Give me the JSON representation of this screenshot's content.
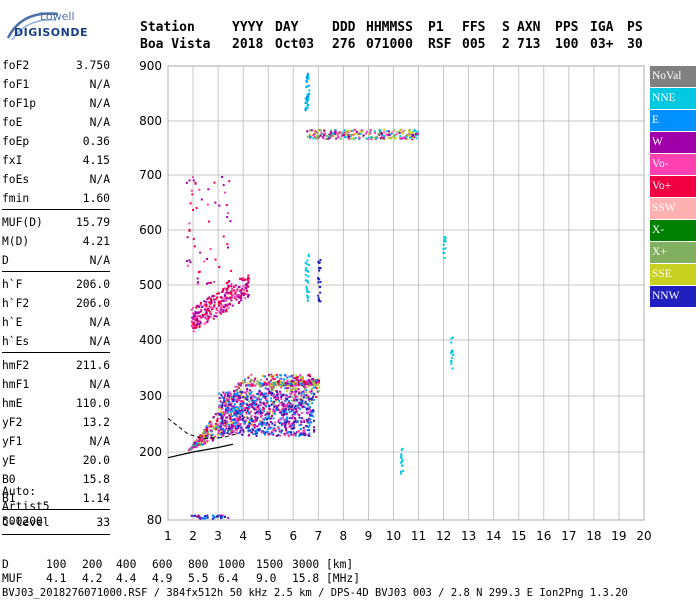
{
  "logo": {
    "line1": "Lowell",
    "line2": "DIGISONDE"
  },
  "header": {
    "labels": [
      "Station",
      "YYYY",
      "DAY",
      "DDD",
      "HHMMSS",
      "P1",
      "FFS",
      "S",
      "AXN",
      "PPS",
      "IGA",
      "PS"
    ],
    "values": [
      "Boa Vista",
      "2018",
      "Oct03",
      "276",
      "071000",
      "RSF",
      "005",
      "2",
      "713",
      "100",
      "03+",
      "30"
    ]
  },
  "params": [
    {
      "k": "foF2",
      "v": "3.750"
    },
    {
      "k": "foF1",
      "v": "N/A"
    },
    {
      "k": "foF1p",
      "v": "N/A"
    },
    {
      "k": "foE",
      "v": "N/A"
    },
    {
      "k": "foEp",
      "v": "0.36"
    },
    {
      "k": "fxI",
      "v": "4.15"
    },
    {
      "k": "foEs",
      "v": "N/A"
    },
    {
      "k": "fmin",
      "v": "1.60"
    },
    {
      "k": "MUF(D)",
      "v": "15.79"
    },
    {
      "k": "M(D)",
      "v": "4.21"
    },
    {
      "k": "D",
      "v": "N/A"
    },
    {
      "k": "h`F",
      "v": "206.0"
    },
    {
      "k": "h`F2",
      "v": "206.0"
    },
    {
      "k": "h`E",
      "v": "N/A"
    },
    {
      "k": "h`Es",
      "v": "N/A"
    },
    {
      "k": "hmF2",
      "v": "211.6"
    },
    {
      "k": "hmF1",
      "v": "N/A"
    },
    {
      "k": "hmE",
      "v": "110.0"
    },
    {
      "k": "yF2",
      "v": "13.2"
    },
    {
      "k": "yF1",
      "v": "N/A"
    },
    {
      "k": "yE",
      "v": "20.0"
    },
    {
      "k": "B0",
      "v": "15.8"
    },
    {
      "k": "B1",
      "v": "1.14"
    },
    {
      "k": "C-level",
      "v": "33"
    }
  ],
  "auto": [
    "Auto:",
    "Artist5",
    "500200"
  ],
  "legend": [
    {
      "label": "NoVal",
      "bg": "#808080",
      "fg": "#ffffff"
    },
    {
      "label": "NNE",
      "bg": "#00c8e0",
      "fg": "#ffffff"
    },
    {
      "label": "E",
      "bg": "#0090ff",
      "fg": "#ffffff"
    },
    {
      "label": "W",
      "bg": "#a000a8",
      "fg": "#ffffff"
    },
    {
      "label": "Vo-",
      "bg": "#ff40b0",
      "fg": "#ffffff"
    },
    {
      "label": "Vo+",
      "bg": "#f00040",
      "fg": "#ffffff"
    },
    {
      "label": "SSW",
      "bg": "#ffb0b0",
      "fg": "#ffffff"
    },
    {
      "label": "X-",
      "bg": "#008000",
      "fg": "#ffffff"
    },
    {
      "label": "X+",
      "bg": "#80b060",
      "fg": "#ffffff"
    },
    {
      "label": "SSE",
      "bg": "#c8d020",
      "fg": "#ffffff"
    },
    {
      "label": "NNW",
      "bg": "#2020c0",
      "fg": "#ffffff"
    }
  ],
  "footer": {
    "d_label": "D",
    "d_values": [
      "100",
      "200",
      "400",
      "600",
      "800",
      "1000",
      "1500",
      "3000"
    ],
    "d_unit": "[km]",
    "muf_label": "MUF",
    "muf_values": [
      "4.1",
      "4.2",
      "4.4",
      "4.9",
      "5.5",
      "6.4",
      "9.0",
      "15.8"
    ],
    "muf_unit": "[MHz]",
    "info": "BVJ03_2018276071000.RSF / 384fx512h 50 kHz 2.5 km / DPS-4D BVJ03 003 / 2.8 N 299.3 E Ion2Png 1.3.20"
  },
  "chart_data": {
    "type": "scatter",
    "title": "",
    "xlabel": "",
    "ylabel": "",
    "xlim": [
      1,
      20
    ],
    "ylim": [
      80,
      900
    ],
    "xticks": [
      1,
      2,
      3,
      4,
      5,
      6,
      7,
      8,
      9,
      10,
      11,
      12,
      13,
      14,
      15,
      16,
      17,
      18,
      19,
      20
    ],
    "yticks": [
      80,
      200,
      300,
      400,
      500,
      600,
      700,
      800,
      900
    ],
    "grid": true,
    "legend_placement": "right",
    "clusters": [
      {
        "name": "F-layer O-trace",
        "x": [
          1.8,
          7.0
        ],
        "y": [
          195,
          340
        ],
        "colors": [
          "W",
          "Vo-",
          "Vo+",
          "X+",
          "SSE",
          "E"
        ],
        "density": 950
      },
      {
        "name": "F-layer core",
        "x": [
          3.0,
          6.8
        ],
        "y": [
          230,
          310
        ],
        "colors": [
          "W",
          "Vo-",
          "E",
          "NNW"
        ],
        "density": 700
      },
      {
        "name": "second-hop F",
        "x": [
          1.9,
          4.2
        ],
        "y": [
          410,
          500
        ],
        "colors": [
          "W",
          "Vo-",
          "Vo+"
        ],
        "density": 300
      },
      {
        "name": "sparse high",
        "x": [
          1.7,
          3.5
        ],
        "y": [
          500,
          700
        ],
        "colors": [
          "W",
          "Vo-",
          "Vo+"
        ],
        "density": 60
      },
      {
        "name": "horizontal 780",
        "x": [
          6.5,
          11.0
        ],
        "y": [
          768,
          786
        ],
        "colors": [
          "Vo-",
          "W",
          "X+",
          "SSE",
          "NNE"
        ],
        "density": 260
      },
      {
        "name": "vertical 6.5 MHz",
        "x": [
          6.45,
          6.6
        ],
        "y": [
          820,
          895
        ],
        "colors": [
          "NNE",
          "E"
        ],
        "density": 40
      },
      {
        "name": "vertical 6.5 MHz low",
        "x": [
          6.45,
          6.6
        ],
        "y": [
          470,
          560
        ],
        "colors": [
          "NNE"
        ],
        "density": 25
      },
      {
        "name": "vertical 7 MHz",
        "x": [
          6.95,
          7.05
        ],
        "y": [
          470,
          550
        ],
        "colors": [
          "NNW"
        ],
        "density": 25
      },
      {
        "name": "vertical 12 MHz",
        "x": [
          11.95,
          12.05
        ],
        "y": [
          550,
          590
        ],
        "colors": [
          "NNE"
        ],
        "density": 12
      },
      {
        "name": "vertical 12.3 MHz",
        "x": [
          12.25,
          12.35
        ],
        "y": [
          350,
          410
        ],
        "colors": [
          "NNE"
        ],
        "density": 15
      },
      {
        "name": "vertical 10.3 MHz",
        "x": [
          10.25,
          10.35
        ],
        "y": [
          160,
          210
        ],
        "colors": [
          "NNE"
        ],
        "density": 15
      },
      {
        "name": "bottom band",
        "x": [
          1.9,
          3.4
        ],
        "y": [
          84,
          90
        ],
        "colors": [
          "W",
          "NNW",
          "E"
        ],
        "density": 40
      }
    ],
    "trace_lines": [
      {
        "name": "profile",
        "x": [
          1.0,
          2.0,
          3.0,
          3.6
        ],
        "y": [
          190,
          200,
          208,
          214
        ]
      },
      {
        "name": "profile-dashed",
        "x": [
          1.0,
          1.8,
          2.4,
          3.2,
          3.7
        ],
        "y": [
          260,
          232,
          224,
          226,
          232
        ]
      }
    ]
  }
}
